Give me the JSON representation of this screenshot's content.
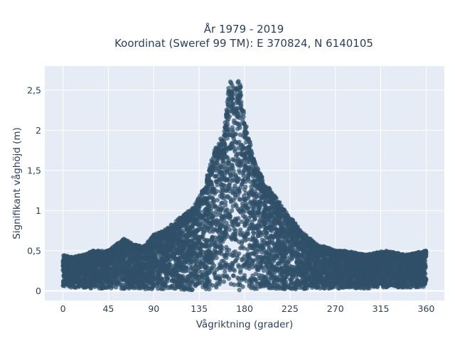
{
  "chart_data": {
    "type": "scatter",
    "title_lines": [
      "År 1979 - 2019",
      "Koordinat (Sweref 99 TM): E 370824, N 6140105"
    ],
    "xlabel": "Vågriktning (grader)",
    "ylabel": "Signifikant våghöjd (m)",
    "xlim": [
      -18,
      378
    ],
    "ylim": [
      -0.12,
      2.8
    ],
    "x_ticks": [
      0,
      45,
      90,
      135,
      180,
      225,
      270,
      315,
      360
    ],
    "x_tick_labels": [
      "0",
      "45",
      "90",
      "135",
      "180",
      "225",
      "270",
      "315",
      "360"
    ],
    "y_ticks": [
      0,
      0.5,
      1,
      1.5,
      2,
      2.5
    ],
    "y_tick_labels": [
      "0",
      "0,5",
      "1",
      "1,5",
      "2",
      "2,5"
    ],
    "grid": true,
    "plot_background": "#e5ecf6",
    "marker_color": "#2f5068",
    "series": [
      {
        "envelope": {
          "x": [
            0,
            10,
            20,
            30,
            45,
            55,
            60,
            70,
            80,
            90,
            100,
            110,
            120,
            130,
            140,
            150,
            160,
            165,
            170,
            175,
            180,
            190,
            200,
            210,
            220,
            230,
            240,
            250,
            260,
            270,
            280,
            300,
            320,
            340,
            360
          ],
          "y_max": [
            0.45,
            0.42,
            0.45,
            0.5,
            0.5,
            0.6,
            0.65,
            0.58,
            0.55,
            0.7,
            0.75,
            0.85,
            0.95,
            1.05,
            1.3,
            1.75,
            2.0,
            2.65,
            2.5,
            2.65,
            2.15,
            1.6,
            1.35,
            1.2,
            1.0,
            0.85,
            0.7,
            0.6,
            0.55,
            0.5,
            0.5,
            0.45,
            0.5,
            0.45,
            0.5
          ],
          "y_min": [
            0.05,
            0.04,
            0.04,
            0.03,
            0.03,
            0.03,
            0.02,
            0.02,
            0.02,
            0.02,
            0.02,
            0.02,
            0.01,
            0.01,
            0.01,
            0.01,
            0.01,
            0.01,
            0.0,
            0.0,
            0.01,
            0.01,
            0.01,
            0.02,
            0.02,
            0.02,
            0.02,
            0.02,
            0.03,
            0.03,
            0.03,
            0.03,
            0.04,
            0.04,
            0.05
          ]
        }
      }
    ]
  }
}
